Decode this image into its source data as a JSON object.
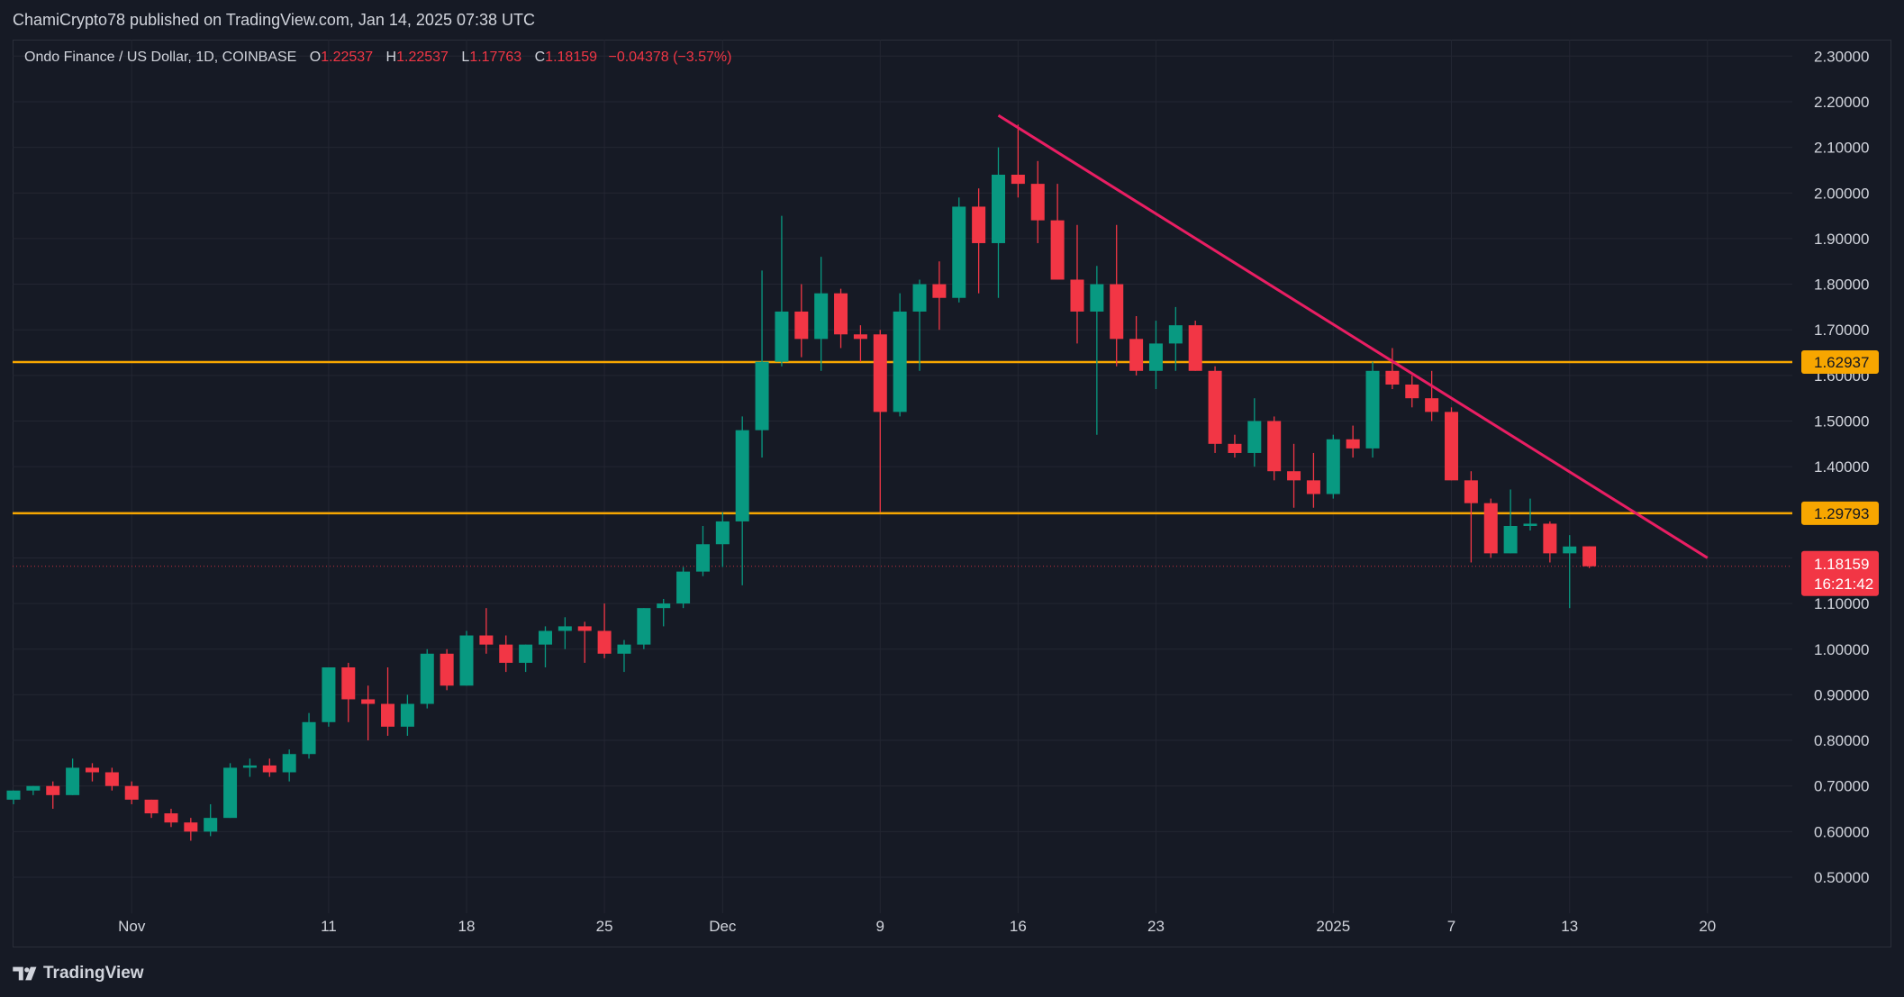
{
  "header": {
    "publish_line": "ChamiCrypto78 published on TradingView.com, Jan 14, 2025 07:38 UTC"
  },
  "legend": {
    "symbol": "Ondo Finance / US Dollar, 1D, COINBASE",
    "o_label": "O",
    "o_value": "1.22537",
    "h_label": "H",
    "h_value": "1.22537",
    "l_label": "L",
    "l_value": "1.17763",
    "c_label": "C",
    "c_value": "1.18159",
    "change": "−0.04378 (−3.57%)"
  },
  "footer": {
    "brand": "TradingView"
  },
  "colors": {
    "up": "#089981",
    "down": "#f23645",
    "level": "#f7a600",
    "trendline": "#e91e63",
    "grid": "#232632",
    "text": "#d1d4dc"
  },
  "chart_data": {
    "type": "candlestick",
    "title": "Ondo Finance / US Dollar, 1D, COINBASE",
    "price_axis": {
      "ticks": [
        0.5,
        0.6,
        0.7,
        0.8,
        0.9,
        1.0,
        1.1,
        1.2,
        1.3,
        1.4,
        1.5,
        1.6,
        1.7,
        1.8,
        1.9,
        2.0,
        2.1,
        2.2,
        2.3
      ],
      "tick_labels": [
        "0.50000",
        "0.60000",
        "0.70000",
        "0.80000",
        "0.90000",
        "1.00000",
        "1.10000",
        "",
        "",
        "1.40000",
        "1.50000",
        "1.60000",
        "1.70000",
        "1.80000",
        "1.90000",
        "2.00000",
        "2.10000",
        "2.20000",
        "2.30000"
      ],
      "range": [
        0.45,
        2.35
      ]
    },
    "time_axis": {
      "labels": [
        {
          "index": 6,
          "text": "Nov"
        },
        {
          "index": 16,
          "text": "11"
        },
        {
          "index": 23,
          "text": "18"
        },
        {
          "index": 30,
          "text": "25"
        },
        {
          "index": 36,
          "text": "Dec"
        },
        {
          "index": 44,
          "text": "9"
        },
        {
          "index": 51,
          "text": "16"
        },
        {
          "index": 58,
          "text": "23"
        },
        {
          "index": 67,
          "text": "2025"
        },
        {
          "index": 73,
          "text": "7"
        },
        {
          "index": 79,
          "text": "13"
        },
        {
          "index": 86,
          "text": "20"
        }
      ],
      "total_slots": 96
    },
    "candles": [
      {
        "o": 0.67,
        "h": 0.69,
        "l": 0.66,
        "c": 0.69
      },
      {
        "o": 0.69,
        "h": 0.7,
        "l": 0.68,
        "c": 0.7
      },
      {
        "o": 0.7,
        "h": 0.71,
        "l": 0.65,
        "c": 0.68
      },
      {
        "o": 0.68,
        "h": 0.76,
        "l": 0.68,
        "c": 0.74
      },
      {
        "o": 0.74,
        "h": 0.75,
        "l": 0.71,
        "c": 0.73
      },
      {
        "o": 0.73,
        "h": 0.74,
        "l": 0.69,
        "c": 0.7
      },
      {
        "o": 0.7,
        "h": 0.71,
        "l": 0.66,
        "c": 0.67
      },
      {
        "o": 0.67,
        "h": 0.67,
        "l": 0.63,
        "c": 0.64
      },
      {
        "o": 0.64,
        "h": 0.65,
        "l": 0.61,
        "c": 0.62
      },
      {
        "o": 0.62,
        "h": 0.63,
        "l": 0.58,
        "c": 0.6
      },
      {
        "o": 0.6,
        "h": 0.66,
        "l": 0.59,
        "c": 0.63
      },
      {
        "o": 0.63,
        "h": 0.75,
        "l": 0.63,
        "c": 0.74
      },
      {
        "o": 0.74,
        "h": 0.76,
        "l": 0.72,
        "c": 0.745
      },
      {
        "o": 0.745,
        "h": 0.76,
        "l": 0.72,
        "c": 0.73
      },
      {
        "o": 0.73,
        "h": 0.78,
        "l": 0.71,
        "c": 0.77
      },
      {
        "o": 0.77,
        "h": 0.86,
        "l": 0.76,
        "c": 0.84
      },
      {
        "o": 0.84,
        "h": 0.96,
        "l": 0.83,
        "c": 0.96
      },
      {
        "o": 0.96,
        "h": 0.97,
        "l": 0.84,
        "c": 0.89
      },
      {
        "o": 0.89,
        "h": 0.92,
        "l": 0.8,
        "c": 0.88
      },
      {
        "o": 0.88,
        "h": 0.96,
        "l": 0.81,
        "c": 0.83
      },
      {
        "o": 0.83,
        "h": 0.9,
        "l": 0.81,
        "c": 0.88
      },
      {
        "o": 0.88,
        "h": 1.0,
        "l": 0.87,
        "c": 0.99
      },
      {
        "o": 0.99,
        "h": 1.0,
        "l": 0.91,
        "c": 0.92
      },
      {
        "o": 0.92,
        "h": 1.04,
        "l": 0.92,
        "c": 1.03
      },
      {
        "o": 1.03,
        "h": 1.09,
        "l": 0.99,
        "c": 1.01
      },
      {
        "o": 1.01,
        "h": 1.03,
        "l": 0.95,
        "c": 0.97
      },
      {
        "o": 0.97,
        "h": 1.01,
        "l": 0.95,
        "c": 1.01
      },
      {
        "o": 1.01,
        "h": 1.05,
        "l": 0.96,
        "c": 1.04
      },
      {
        "o": 1.04,
        "h": 1.07,
        "l": 1.0,
        "c": 1.05
      },
      {
        "o": 1.05,
        "h": 1.06,
        "l": 0.97,
        "c": 1.04
      },
      {
        "o": 1.04,
        "h": 1.1,
        "l": 0.98,
        "c": 0.99
      },
      {
        "o": 0.99,
        "h": 1.02,
        "l": 0.95,
        "c": 1.01
      },
      {
        "o": 1.01,
        "h": 1.09,
        "l": 1.0,
        "c": 1.09
      },
      {
        "o": 1.09,
        "h": 1.11,
        "l": 1.05,
        "c": 1.1
      },
      {
        "o": 1.1,
        "h": 1.18,
        "l": 1.09,
        "c": 1.17
      },
      {
        "o": 1.17,
        "h": 1.27,
        "l": 1.16,
        "c": 1.23
      },
      {
        "o": 1.23,
        "h": 1.3,
        "l": 1.18,
        "c": 1.28
      },
      {
        "o": 1.28,
        "h": 1.51,
        "l": 1.14,
        "c": 1.48
      },
      {
        "o": 1.48,
        "h": 1.83,
        "l": 1.42,
        "c": 1.63
      },
      {
        "o": 1.63,
        "h": 1.95,
        "l": 1.62,
        "c": 1.74
      },
      {
        "o": 1.74,
        "h": 1.8,
        "l": 1.64,
        "c": 1.68
      },
      {
        "o": 1.68,
        "h": 1.86,
        "l": 1.61,
        "c": 1.78
      },
      {
        "o": 1.78,
        "h": 1.79,
        "l": 1.66,
        "c": 1.69
      },
      {
        "o": 1.69,
        "h": 1.71,
        "l": 1.63,
        "c": 1.68
      },
      {
        "o": 1.69,
        "h": 1.7,
        "l": 1.3,
        "c": 1.52
      },
      {
        "o": 1.52,
        "h": 1.78,
        "l": 1.51,
        "c": 1.74
      },
      {
        "o": 1.74,
        "h": 1.81,
        "l": 1.61,
        "c": 1.8
      },
      {
        "o": 1.8,
        "h": 1.85,
        "l": 1.7,
        "c": 1.77
      },
      {
        "o": 1.77,
        "h": 1.99,
        "l": 1.76,
        "c": 1.97
      },
      {
        "o": 1.97,
        "h": 2.01,
        "l": 1.78,
        "c": 1.89
      },
      {
        "o": 1.89,
        "h": 2.1,
        "l": 1.77,
        "c": 2.04
      },
      {
        "o": 2.04,
        "h": 2.15,
        "l": 1.99,
        "c": 2.02
      },
      {
        "o": 2.02,
        "h": 2.07,
        "l": 1.89,
        "c": 1.94
      },
      {
        "o": 1.94,
        "h": 2.02,
        "l": 1.81,
        "c": 1.81
      },
      {
        "o": 1.81,
        "h": 1.93,
        "l": 1.67,
        "c": 1.74
      },
      {
        "o": 1.74,
        "h": 1.84,
        "l": 1.47,
        "c": 1.8
      },
      {
        "o": 1.8,
        "h": 1.93,
        "l": 1.62,
        "c": 1.68
      },
      {
        "o": 1.68,
        "h": 1.73,
        "l": 1.6,
        "c": 1.61
      },
      {
        "o": 1.61,
        "h": 1.72,
        "l": 1.57,
        "c": 1.67
      },
      {
        "o": 1.67,
        "h": 1.75,
        "l": 1.61,
        "c": 1.71
      },
      {
        "o": 1.71,
        "h": 1.72,
        "l": 1.61,
        "c": 1.61
      },
      {
        "o": 1.61,
        "h": 1.62,
        "l": 1.43,
        "c": 1.45
      },
      {
        "o": 1.45,
        "h": 1.47,
        "l": 1.42,
        "c": 1.43
      },
      {
        "o": 1.43,
        "h": 1.55,
        "l": 1.4,
        "c": 1.5
      },
      {
        "o": 1.5,
        "h": 1.51,
        "l": 1.37,
        "c": 1.39
      },
      {
        "o": 1.39,
        "h": 1.45,
        "l": 1.31,
        "c": 1.37
      },
      {
        "o": 1.37,
        "h": 1.43,
        "l": 1.31,
        "c": 1.34
      },
      {
        "o": 1.34,
        "h": 1.47,
        "l": 1.33,
        "c": 1.46
      },
      {
        "o": 1.46,
        "h": 1.49,
        "l": 1.42,
        "c": 1.44
      },
      {
        "o": 1.44,
        "h": 1.63,
        "l": 1.42,
        "c": 1.61
      },
      {
        "o": 1.61,
        "h": 1.66,
        "l": 1.57,
        "c": 1.58
      },
      {
        "o": 1.58,
        "h": 1.6,
        "l": 1.53,
        "c": 1.55
      },
      {
        "o": 1.55,
        "h": 1.61,
        "l": 1.5,
        "c": 1.52
      },
      {
        "o": 1.52,
        "h": 1.53,
        "l": 1.37,
        "c": 1.37
      },
      {
        "o": 1.37,
        "h": 1.39,
        "l": 1.19,
        "c": 1.32
      },
      {
        "o": 1.32,
        "h": 1.33,
        "l": 1.2,
        "c": 1.21
      },
      {
        "o": 1.21,
        "h": 1.35,
        "l": 1.21,
        "c": 1.27
      },
      {
        "o": 1.27,
        "h": 1.33,
        "l": 1.26,
        "c": 1.275
      },
      {
        "o": 1.275,
        "h": 1.28,
        "l": 1.19,
        "c": 1.21
      },
      {
        "o": 1.21,
        "h": 1.25,
        "l": 1.09,
        "c": 1.225
      },
      {
        "o": 1.22537,
        "h": 1.22537,
        "l": 1.17763,
        "c": 1.18159
      }
    ],
    "levels": [
      {
        "price": 1.62937,
        "label": "1.62937"
      },
      {
        "price": 1.29793,
        "label": "1.29793"
      }
    ],
    "last_price": {
      "price": 1.18159,
      "label": "1.18159",
      "countdown": "16:21:42"
    },
    "trendline": {
      "from": {
        "index": 50,
        "price": 2.17
      },
      "to": {
        "index": 86,
        "price": 1.2
      }
    }
  }
}
